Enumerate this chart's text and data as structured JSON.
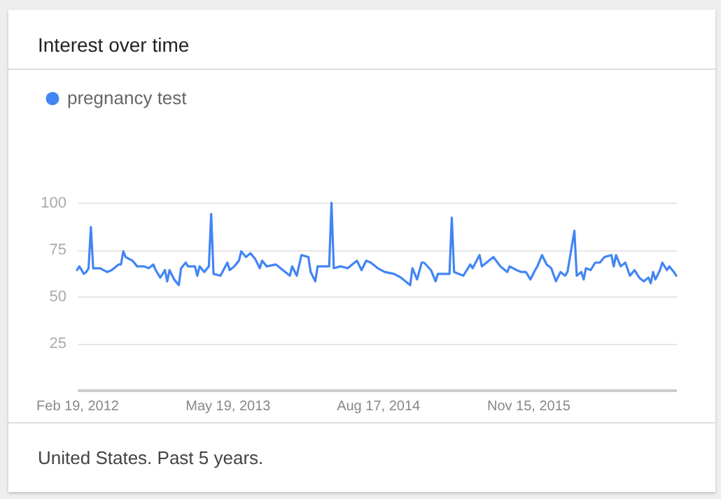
{
  "chart_data": {
    "type": "line",
    "title": "Interest over time",
    "annotations": [
      "United States. Past 5 years."
    ],
    "x": [
      "2012-02-19",
      "2012-02-26",
      "2012-03-11",
      "2012-03-18",
      "2012-03-25",
      "2012-04-01",
      "2012-04-08",
      "2012-04-29",
      "2012-05-20",
      "2012-06-03",
      "2012-06-24",
      "2012-07-01",
      "2012-07-08",
      "2012-07-15",
      "2012-08-05",
      "2012-08-19",
      "2012-09-09",
      "2012-09-23",
      "2012-10-07",
      "2012-10-14",
      "2012-10-28",
      "2012-11-11",
      "2012-11-18",
      "2012-11-25",
      "2012-12-09",
      "2012-12-23",
      "2012-12-30",
      "2013-01-13",
      "2013-01-20",
      "2013-02-10",
      "2013-02-17",
      "2013-02-24",
      "2013-03-10",
      "2013-03-24",
      "2013-03-31",
      "2013-04-07",
      "2013-04-28",
      "2013-05-19",
      "2013-05-26",
      "2013-06-09",
      "2013-06-23",
      "2013-06-30",
      "2013-07-14",
      "2013-07-28",
      "2013-08-11",
      "2013-08-25",
      "2013-09-01",
      "2013-09-15",
      "2013-10-13",
      "2013-11-03",
      "2013-11-24",
      "2013-12-01",
      "2013-12-15",
      "2013-12-29",
      "2014-01-19",
      "2014-01-26",
      "2014-02-09",
      "2014-02-16",
      "2014-03-09",
      "2014-03-23",
      "2014-03-30",
      "2014-04-06",
      "2014-04-27",
      "2014-05-18",
      "2014-06-15",
      "2014-06-29",
      "2014-07-13",
      "2014-07-27",
      "2014-08-17",
      "2014-09-07",
      "2014-10-05",
      "2014-10-26",
      "2014-11-09",
      "2014-11-23",
      "2014-11-30",
      "2014-12-14",
      "2014-12-28",
      "2015-01-04",
      "2015-01-25",
      "2015-02-08",
      "2015-02-15",
      "2015-03-15",
      "2015-03-22",
      "2015-03-29",
      "2015-04-05",
      "2015-05-03",
      "2015-05-24",
      "2015-05-31",
      "2015-06-21",
      "2015-06-28",
      "2015-07-12",
      "2015-08-02",
      "2015-08-23",
      "2015-09-13",
      "2015-09-20",
      "2015-10-11",
      "2015-10-25",
      "2015-11-08",
      "2015-11-22",
      "2015-12-06",
      "2015-12-13",
      "2015-12-27",
      "2016-01-10",
      "2016-01-24",
      "2016-02-07",
      "2016-02-21",
      "2016-03-06",
      "2016-03-13",
      "2016-04-03",
      "2016-04-10",
      "2016-04-24",
      "2016-05-01",
      "2016-05-08",
      "2016-05-22",
      "2016-06-05",
      "2016-06-19",
      "2016-07-03",
      "2016-07-24",
      "2016-07-31",
      "2016-08-07",
      "2016-08-21",
      "2016-09-04",
      "2016-09-18",
      "2016-10-02",
      "2016-10-16",
      "2016-10-30",
      "2016-11-13",
      "2016-11-20",
      "2016-11-27",
      "2016-12-04",
      "2016-12-18",
      "2016-12-25",
      "2017-01-08",
      "2017-01-15",
      "2017-01-29",
      "2017-02-05"
    ],
    "series": [
      {
        "name": "pregnancy test",
        "color": "#4285f4",
        "values": [
          64,
          66,
          62,
          63,
          65,
          87,
          65,
          65,
          63,
          64,
          67,
          67,
          74,
          71,
          69,
          66,
          66,
          65,
          67,
          64,
          60,
          64,
          58,
          64,
          59,
          56,
          65,
          68,
          66,
          66,
          61,
          66,
          63,
          66,
          94,
          62,
          61,
          68,
          64,
          66,
          69,
          74,
          71,
          73,
          70,
          65,
          69,
          66,
          67,
          64,
          61,
          66,
          61,
          72,
          71,
          63,
          58,
          66,
          66,
          66,
          100,
          65,
          66,
          65,
          69,
          64,
          69,
          68,
          65,
          63,
          62,
          60,
          58,
          56,
          65,
          59,
          68,
          68,
          64,
          58,
          62,
          62,
          62,
          92,
          63,
          61,
          67,
          65,
          72,
          66,
          68,
          71,
          66,
          63,
          66,
          64,
          63,
          63,
          59,
          64,
          66,
          72,
          67,
          65,
          58,
          63,
          61,
          63,
          85,
          61,
          63,
          59,
          65,
          64,
          68,
          68,
          71,
          72,
          66,
          72,
          66,
          68,
          61,
          64,
          60,
          58,
          60,
          57,
          63,
          59,
          64,
          68,
          64,
          66,
          63,
          61
        ]
      }
    ],
    "xlim": [
      "2012-02-19",
      "2017-02-05"
    ],
    "xticks": [
      {
        "value": "2012-02-19",
        "label": "Feb 19, 2012"
      },
      {
        "value": "2013-05-19",
        "label": "May 19, 2013"
      },
      {
        "value": "2014-08-17",
        "label": "Aug 17, 2014"
      },
      {
        "value": "2015-11-15",
        "label": "Nov 15, 2015"
      }
    ],
    "ylim": [
      0,
      100
    ],
    "yticks": [
      25,
      50,
      75,
      100
    ],
    "grid": "y",
    "legend": "top left",
    "marker": "none",
    "line_style": "solid"
  }
}
